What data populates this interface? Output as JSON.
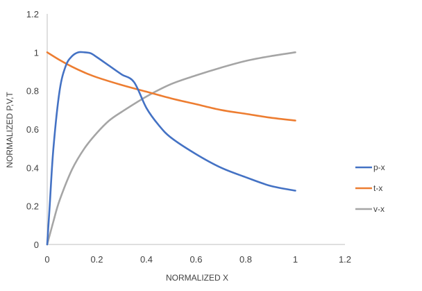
{
  "chart_data": {
    "type": "line",
    "title": "",
    "xlabel": "NORMALIZED X",
    "ylabel": "NORMALIZED P,V,T",
    "xlim": [
      0,
      1.2
    ],
    "ylim": [
      0,
      1.2
    ],
    "xticks": [
      "0",
      "0.2",
      "0.4",
      "0.6",
      "0.8",
      "1",
      "1.2"
    ],
    "yticks": [
      "0",
      "0.2",
      "0.4",
      "0.6",
      "0.8",
      "1",
      "1.2"
    ],
    "grid": false,
    "legend_position": "right",
    "series": [
      {
        "name": "p-x",
        "color": "#4472c4",
        "x": [
          0,
          0.01,
          0.025,
          0.05,
          0.075,
          0.1,
          0.125,
          0.15,
          0.175,
          0.2,
          0.25,
          0.3,
          0.35,
          0.4,
          0.45,
          0.5,
          0.6,
          0.7,
          0.8,
          0.9,
          1.0
        ],
        "y": [
          0,
          0.2,
          0.5,
          0.8,
          0.93,
          0.98,
          1.0,
          1.0,
          0.995,
          0.975,
          0.93,
          0.885,
          0.845,
          0.71,
          0.62,
          0.555,
          0.47,
          0.4,
          0.35,
          0.305,
          0.28
        ]
      },
      {
        "name": "t-x",
        "color": "#ed7d31",
        "x": [
          0,
          0.05,
          0.1,
          0.15,
          0.2,
          0.3,
          0.4,
          0.5,
          0.6,
          0.7,
          0.8,
          0.9,
          1.0
        ],
        "y": [
          1.0,
          0.96,
          0.925,
          0.895,
          0.87,
          0.83,
          0.795,
          0.76,
          0.73,
          0.7,
          0.68,
          0.66,
          0.645
        ]
      },
      {
        "name": "v-x",
        "color": "#a5a5a5",
        "x": [
          0,
          0.025,
          0.05,
          0.1,
          0.15,
          0.2,
          0.25,
          0.3,
          0.4,
          0.5,
          0.6,
          0.7,
          0.8,
          0.9,
          1.0
        ],
        "y": [
          0,
          0.12,
          0.23,
          0.39,
          0.5,
          0.58,
          0.645,
          0.69,
          0.77,
          0.835,
          0.88,
          0.92,
          0.955,
          0.98,
          1.0
        ]
      }
    ]
  }
}
